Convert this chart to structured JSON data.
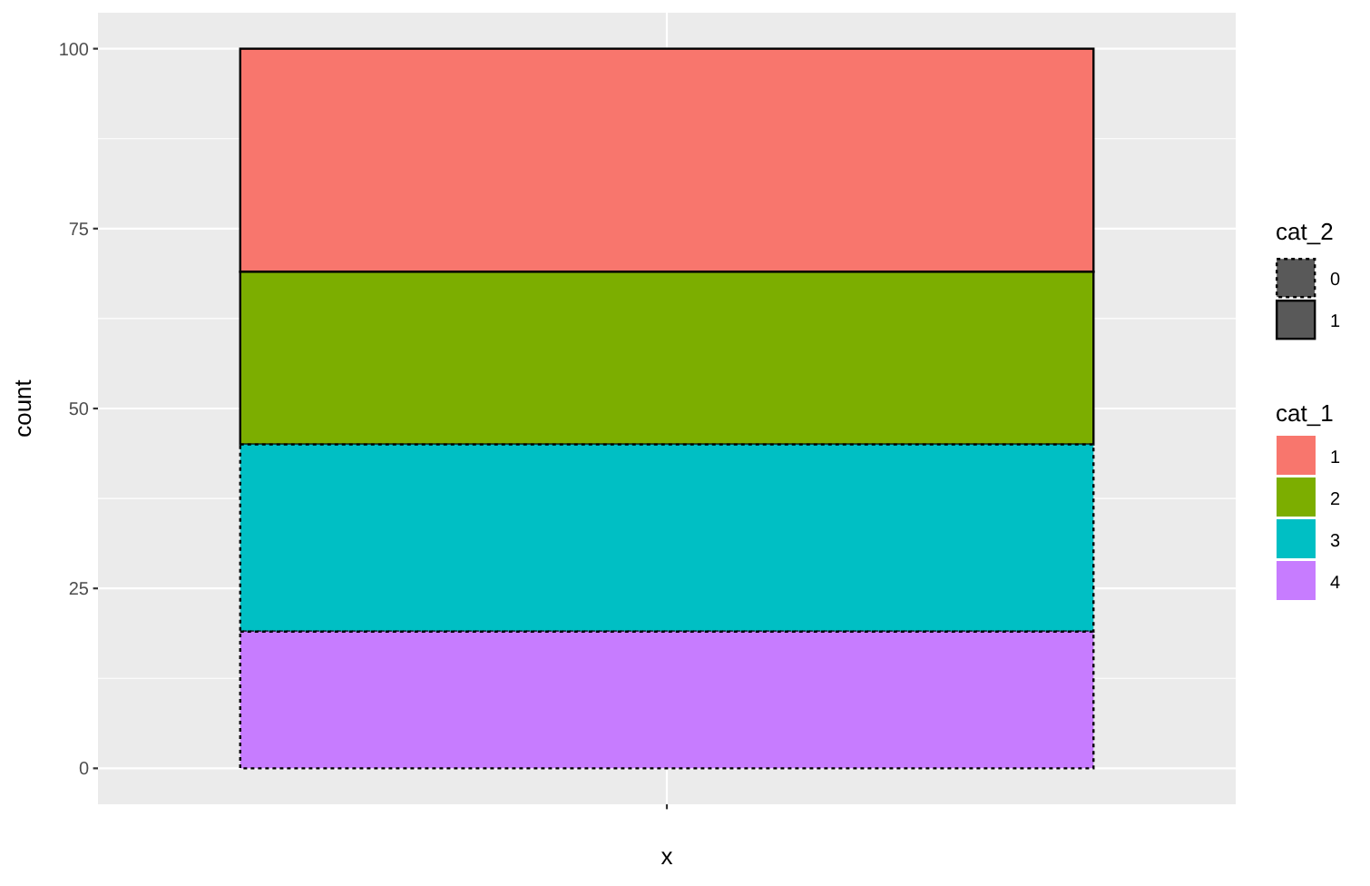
{
  "chart_data": {
    "type": "bar",
    "categories": [
      null
    ],
    "series": [
      {
        "name": "4",
        "color": "#c77cff",
        "values": [
          19
        ],
        "line_style": "dotted"
      },
      {
        "name": "3",
        "color": "#00bfc4",
        "values": [
          26
        ],
        "line_style": "dotted"
      },
      {
        "name": "2",
        "color": "#7cae00",
        "values": [
          24
        ],
        "line_style": "solid"
      },
      {
        "name": "1",
        "color": "#f8766d",
        "values": [
          31
        ],
        "line_style": "solid"
      }
    ],
    "stacked": true,
    "xlabel": "x",
    "ylabel": "count",
    "ylim": [
      -5,
      105
    ],
    "yticks": [
      0,
      25,
      50,
      75,
      100
    ],
    "grid": true,
    "legend": "right",
    "legend_title": "cat_1",
    "annotations": [
      "cat_2",
      "0",
      "1"
    ]
  }
}
